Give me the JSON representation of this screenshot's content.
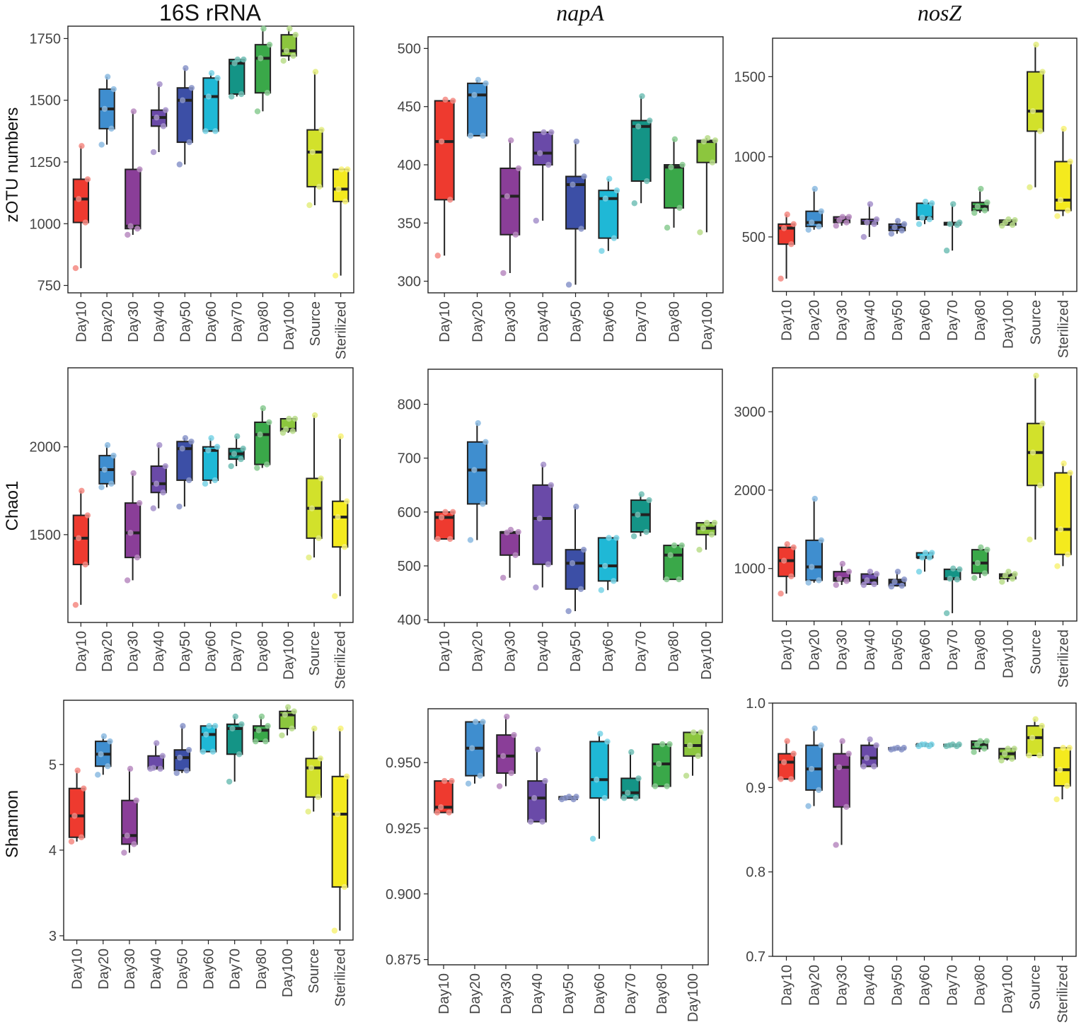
{
  "column_titles": [
    "16S rRNA",
    "napA",
    "nosZ"
  ],
  "row_labels": [
    "zOTU numbers",
    "Chao1",
    "Shannon"
  ],
  "colors": {
    "Day10": "#ee3a2f",
    "Day20": "#3f8ecf",
    "Day30": "#8a3e98",
    "Day40": "#6a4aa8",
    "Day50": "#3c4fa6",
    "Day60": "#1fb8d6",
    "Day70": "#149486",
    "Day80": "#3aa849",
    "Day100": "#8cc63e",
    "Source": "#d2e12b",
    "Sterilized": "#f4ea1e"
  },
  "chart_data": [
    {
      "type": "box",
      "panel": "16S rRNA / zOTU numbers",
      "categories": [
        "Day10",
        "Day20",
        "Day30",
        "Day40",
        "Day50",
        "Day60",
        "Day70",
        "Day80",
        "Day100",
        "Source",
        "Sterilized"
      ],
      "yticks": [
        750,
        1000,
        1250,
        1500,
        1750
      ],
      "tick_labels": [
        "750",
        "1000",
        "1250",
        "1500",
        "1750"
      ],
      "ylim": [
        720,
        1800
      ],
      "boxes": [
        [
          820,
          1005,
          1100,
          1180,
          1315
        ],
        [
          1320,
          1385,
          1465,
          1545,
          1595
        ],
        [
          955,
          980,
          990,
          1220,
          1455
        ],
        [
          1290,
          1395,
          1430,
          1460,
          1565
        ],
        [
          1240,
          1330,
          1500,
          1550,
          1630
        ],
        [
          1375,
          1375,
          1515,
          1590,
          1610
        ],
        [
          1515,
          1525,
          1650,
          1665,
          1665
        ],
        [
          1455,
          1530,
          1670,
          1725,
          1790
        ],
        [
          1660,
          1680,
          1700,
          1765,
          1790
        ],
        [
          1075,
          1150,
          1290,
          1380,
          1615
        ],
        [
          790,
          1090,
          1140,
          1220,
          1220
        ]
      ]
    },
    {
      "type": "box",
      "panel": "napA / zOTU numbers",
      "categories": [
        "Day10",
        "Day20",
        "Day30",
        "Day40",
        "Day50",
        "Day60",
        "Day70",
        "Day80",
        "Day100"
      ],
      "yticks": [
        300,
        350,
        400,
        450,
        500
      ],
      "tick_labels": [
        "300",
        "350",
        "400",
        "450",
        "500"
      ],
      "ylim": [
        290,
        510
      ],
      "boxes": [
        [
          322,
          370,
          420,
          455,
          456
        ],
        [
          425,
          425,
          460,
          470,
          473
        ],
        [
          307,
          340,
          373,
          397,
          421
        ],
        [
          352,
          400,
          410,
          428,
          428
        ],
        [
          297,
          345,
          383,
          390,
          420
        ],
        [
          326,
          337,
          371,
          378,
          388
        ],
        [
          367,
          386,
          433,
          438,
          459
        ],
        [
          346,
          363,
          398,
          400,
          422
        ],
        [
          342,
          402,
          420,
          421,
          423
        ]
      ]
    },
    {
      "type": "box",
      "panel": "nosZ / zOTU numbers",
      "categories": [
        "Day10",
        "Day20",
        "Day30",
        "Day40",
        "Day50",
        "Day60",
        "Day70",
        "Day80",
        "Day100",
        "Source",
        "Sterilized"
      ],
      "yticks": [
        500,
        1000,
        1500
      ],
      "tick_labels": [
        "500",
        "1000",
        "1500"
      ],
      "ylim": [
        160,
        1740
      ],
      "boxes": [
        [
          240,
          455,
          555,
          580,
          640
        ],
        [
          545,
          565,
          590,
          660,
          800
        ],
        [
          570,
          590,
          605,
          625,
          625
        ],
        [
          500,
          580,
          590,
          610,
          705
        ],
        [
          520,
          540,
          560,
          580,
          600
        ],
        [
          580,
          610,
          620,
          710,
          720
        ],
        [
          415,
          575,
          580,
          590,
          705
        ],
        [
          650,
          665,
          690,
          715,
          800
        ],
        [
          570,
          575,
          590,
          605,
          610
        ],
        [
          810,
          1160,
          1285,
          1530,
          1700
        ],
        [
          630,
          665,
          730,
          970,
          1175
        ]
      ]
    },
    {
      "type": "box",
      "panel": "16S rRNA / Chao1",
      "categories": [
        "Day10",
        "Day20",
        "Day30",
        "Day40",
        "Day50",
        "Day60",
        "Day70",
        "Day80",
        "Day100",
        "Source",
        "Sterilized"
      ],
      "yticks": [
        1500,
        2000
      ],
      "tick_labels": [
        "1500",
        "2000"
      ],
      "ylim": [
        1000,
        2450
      ],
      "boxes": [
        [
          1100,
          1330,
          1480,
          1610,
          1750
        ],
        [
          1770,
          1790,
          1870,
          1950,
          2010
        ],
        [
          1240,
          1370,
          1510,
          1680,
          1850
        ],
        [
          1650,
          1740,
          1790,
          1890,
          2010
        ],
        [
          1660,
          1810,
          1990,
          2030,
          2050
        ],
        [
          1790,
          1810,
          1980,
          2000,
          2050
        ],
        [
          1890,
          1930,
          1960,
          1990,
          2060
        ],
        [
          1880,
          1900,
          2070,
          2140,
          2220
        ],
        [
          2080,
          2090,
          2100,
          2160,
          2160
        ],
        [
          1370,
          1480,
          1650,
          1820,
          2180
        ],
        [
          1150,
          1430,
          1600,
          1690,
          2060
        ]
      ]
    },
    {
      "type": "box",
      "panel": "napA / Chao1",
      "categories": [
        "Day10",
        "Day20",
        "Day30",
        "Day40",
        "Day50",
        "Day60",
        "Day70",
        "Day80",
        "Day100"
      ],
      "yticks": [
        400,
        500,
        600,
        700,
        800
      ],
      "tick_labels": [
        "400",
        "500",
        "600",
        "700",
        "800"
      ],
      "ylim": [
        395,
        865
      ],
      "boxes": [
        [
          550,
          550,
          590,
          600,
          600
        ],
        [
          548,
          615,
          678,
          730,
          765
        ],
        [
          478,
          520,
          562,
          563,
          567
        ],
        [
          460,
          503,
          588,
          650,
          688
        ],
        [
          416,
          457,
          505,
          530,
          610
        ],
        [
          455,
          472,
          500,
          552,
          552
        ],
        [
          555,
          563,
          595,
          622,
          633
        ],
        [
          475,
          475,
          520,
          538,
          538
        ],
        [
          530,
          558,
          570,
          580,
          580
        ]
      ]
    },
    {
      "type": "box",
      "panel": "nosZ / Chao1",
      "categories": [
        "Day10",
        "Day20",
        "Day30",
        "Day40",
        "Day50",
        "Day60",
        "Day70",
        "Day80",
        "Day100",
        "Source",
        "Sterilized"
      ],
      "yticks": [
        1000,
        2000,
        3000
      ],
      "tick_labels": [
        "1000",
        "2000",
        "3000"
      ],
      "ylim": [
        330,
        3560
      ],
      "boxes": [
        [
          680,
          900,
          1100,
          1270,
          1310
        ],
        [
          820,
          850,
          1020,
          1360,
          1890
        ],
        [
          790,
          840,
          870,
          960,
          1060
        ],
        [
          790,
          800,
          850,
          930,
          960
        ],
        [
          770,
          780,
          830,
          860,
          960
        ],
        [
          960,
          1140,
          1140,
          1200,
          1200
        ],
        [
          430,
          860,
          870,
          990,
          1000
        ],
        [
          880,
          940,
          1070,
          1240,
          1270
        ],
        [
          830,
          870,
          910,
          930,
          960
        ],
        [
          1370,
          2060,
          2480,
          2850,
          3460
        ],
        [
          1030,
          1180,
          1500,
          2220,
          2340
        ]
      ]
    },
    {
      "type": "box",
      "panel": "16S rRNA / Shannon",
      "categories": [
        "Day10",
        "Day20",
        "Day30",
        "Day40",
        "Day50",
        "Day60",
        "Day70",
        "Day80",
        "Day100",
        "Source",
        "Sterilized"
      ],
      "yticks": [
        3,
        4,
        5
      ],
      "tick_labels": [
        "3",
        "4",
        "5"
      ],
      "ylim": [
        2.95,
        5.75
      ],
      "boxes": [
        [
          4.1,
          4.15,
          4.4,
          4.72,
          4.93
        ],
        [
          4.88,
          4.98,
          5.12,
          5.27,
          5.33
        ],
        [
          3.97,
          4.07,
          4.17,
          4.58,
          4.95
        ],
        [
          4.95,
          4.95,
          4.96,
          5.1,
          5.25
        ],
        [
          4.9,
          4.93,
          5.08,
          5.17,
          5.45
        ],
        [
          5.15,
          5.15,
          5.35,
          5.45,
          5.45
        ],
        [
          4.8,
          5.12,
          5.42,
          5.47,
          5.56
        ],
        [
          5.27,
          5.27,
          5.4,
          5.45,
          5.56
        ],
        [
          5.34,
          5.42,
          5.58,
          5.62,
          5.67
        ],
        [
          4.45,
          4.62,
          4.96,
          5.07,
          5.42
        ],
        [
          3.06,
          3.57,
          4.42,
          4.86,
          5.42
        ]
      ]
    },
    {
      "type": "box",
      "panel": "napA / Shannon",
      "categories": [
        "Day10",
        "Day20",
        "Day30",
        "Day40",
        "Day50",
        "Day60",
        "Day70",
        "Day80",
        "Day100"
      ],
      "yticks": [
        0.875,
        0.9,
        0.925,
        0.95
      ],
      "tick_labels": [
        "0.875",
        "0.900",
        "0.925",
        "0.950"
      ],
      "ylim": [
        0.873,
        0.9705
      ],
      "boxes": [
        [
          0.931,
          0.931,
          0.933,
          0.943,
          0.943
        ],
        [
          0.942,
          0.945,
          0.9555,
          0.9655,
          0.9655
        ],
        [
          0.941,
          0.946,
          0.9525,
          0.9605,
          0.9675
        ],
        [
          0.9275,
          0.9275,
          0.9365,
          0.943,
          0.955
        ],
        [
          0.936,
          0.936,
          0.9365,
          0.937,
          0.937
        ],
        [
          0.921,
          0.9365,
          0.9435,
          0.958,
          0.961
        ],
        [
          0.9365,
          0.9365,
          0.9385,
          0.944,
          0.954
        ],
        [
          0.941,
          0.941,
          0.9495,
          0.957,
          0.957
        ],
        [
          0.945,
          0.9525,
          0.9565,
          0.9615,
          0.9615
        ]
      ]
    },
    {
      "type": "box",
      "panel": "nosZ / Shannon",
      "categories": [
        "Day10",
        "Day20",
        "Day30",
        "Day40",
        "Day50",
        "Day60",
        "Day70",
        "Day80",
        "Day100",
        "Source",
        "Sterilized"
      ],
      "yticks": [
        0.7,
        0.8,
        0.9,
        1.0
      ],
      "tick_labels": [
        "0.7",
        "0.8",
        "0.9",
        "1.0"
      ],
      "ylim": [
        0.7,
        1.0
      ],
      "boxes": [
        [
          0.91,
          0.91,
          0.93,
          0.94,
          0.955
        ],
        [
          0.878,
          0.897,
          0.922,
          0.95,
          0.97
        ],
        [
          0.832,
          0.877,
          0.924,
          0.94,
          0.955
        ],
        [
          0.925,
          0.925,
          0.935,
          0.95,
          0.957
        ],
        [
          0.945,
          0.945,
          0.946,
          0.947,
          0.947
        ],
        [
          0.949,
          0.949,
          0.951,
          0.951,
          0.951
        ],
        [
          0.949,
          0.949,
          0.95,
          0.951,
          0.951
        ],
        [
          0.942,
          0.946,
          0.951,
          0.955,
          0.955
        ],
        [
          0.932,
          0.934,
          0.94,
          0.946,
          0.946
        ],
        [
          0.938,
          0.938,
          0.959,
          0.973,
          0.981
        ],
        [
          0.886,
          0.902,
          0.921,
          0.947,
          0.947
        ]
      ]
    }
  ]
}
